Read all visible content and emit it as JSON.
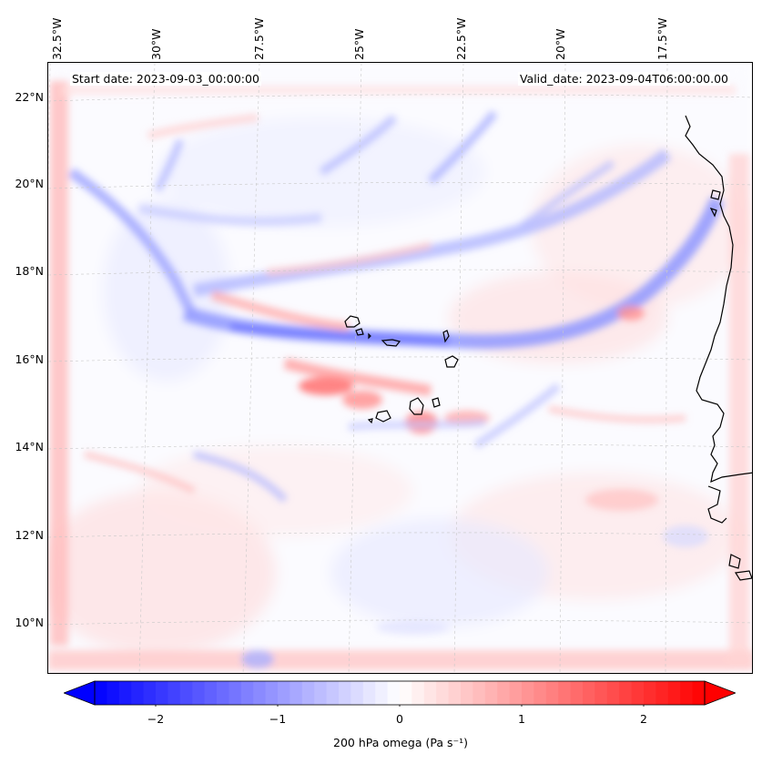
{
  "map": {
    "start_date_label": "Start date: 2023-09-03_00:00:00",
    "valid_date_label": "Valid_date: 2023-09-04T06:00:00.00",
    "lon_labels": [
      "32.5°W",
      "30°W",
      "27.5°W",
      "25°W",
      "22.5°W",
      "20°W",
      "17.5°W"
    ],
    "lat_labels": [
      "22°N",
      "20°N",
      "18°N",
      "16°N",
      "14°N",
      "12°N",
      "10°N"
    ],
    "colors": {
      "negative": "#0000ff",
      "positive": "#ff0000",
      "neutral": "#ffffff",
      "coastline": "#000000"
    }
  },
  "colorbar": {
    "ticks": [
      "−2",
      "−1",
      "0",
      "1",
      "2"
    ],
    "label": "200 hPa omega (Pa s⁻¹)",
    "range": [
      -2.5,
      2.5
    ]
  }
}
